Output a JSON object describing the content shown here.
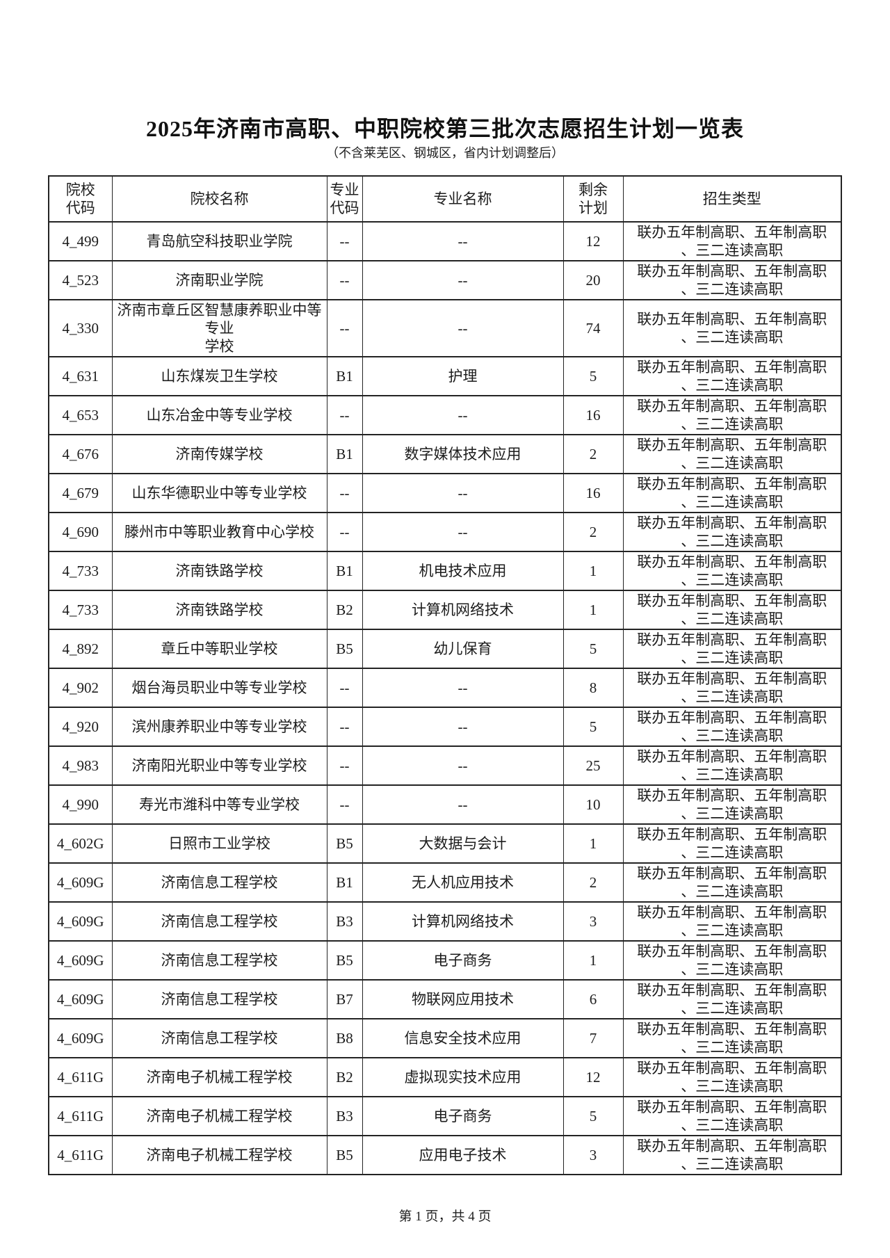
{
  "page": {
    "title": "2025年济南市高职、中职院校第三批次志愿招生计划一览表",
    "subtitle": "（不含莱芜区、钢城区，省内计划调整后）",
    "footer": "第 1 页，共 4 页"
  },
  "table": {
    "headers": [
      {
        "id": "school_code",
        "lines": [
          "院校",
          "代码"
        ]
      },
      {
        "id": "school_name",
        "lines": [
          "院校名称"
        ]
      },
      {
        "id": "major_code",
        "lines": [
          "专业",
          "代码"
        ]
      },
      {
        "id": "major_name",
        "lines": [
          "专业名称"
        ]
      },
      {
        "id": "remaining",
        "lines": [
          "剩余",
          "计划"
        ]
      },
      {
        "id": "type",
        "lines": [
          "招生类型"
        ]
      }
    ],
    "rows": [
      {
        "school_code": "4_499",
        "school_name": "青岛航空科技职业学院",
        "major_code": "--",
        "major_name": "--",
        "remaining": "12",
        "type_lines": [
          "联办五年制高职、五年制高职",
          "、三二连读高职"
        ]
      },
      {
        "school_code": "4_523",
        "school_name": "济南职业学院",
        "major_code": "--",
        "major_name": "--",
        "remaining": "20",
        "type_lines": [
          "联办五年制高职、五年制高职",
          "、三二连读高职"
        ]
      },
      {
        "school_code": "4_330",
        "school_name": "济南市章丘区智慧康养职业中等专业学校",
        "school_name_lines": [
          "济南市章丘区智慧康养职业中等专业",
          "学校"
        ],
        "major_code": "--",
        "major_name": "--",
        "remaining": "74",
        "type_lines": [
          "联办五年制高职、五年制高职",
          "、三二连读高职"
        ]
      },
      {
        "school_code": "4_631",
        "school_name": "山东煤炭卫生学校",
        "major_code": "B1",
        "major_name": "护理",
        "remaining": "5",
        "type_lines": [
          "联办五年制高职、五年制高职",
          "、三二连读高职"
        ]
      },
      {
        "school_code": "4_653",
        "school_name": "山东冶金中等专业学校",
        "major_code": "--",
        "major_name": "--",
        "remaining": "16",
        "type_lines": [
          "联办五年制高职、五年制高职",
          "、三二连读高职"
        ]
      },
      {
        "school_code": "4_676",
        "school_name": "济南传媒学校",
        "major_code": "B1",
        "major_name": "数字媒体技术应用",
        "remaining": "2",
        "type_lines": [
          "联办五年制高职、五年制高职",
          "、三二连读高职"
        ]
      },
      {
        "school_code": "4_679",
        "school_name": "山东华德职业中等专业学校",
        "major_code": "--",
        "major_name": "--",
        "remaining": "16",
        "type_lines": [
          "联办五年制高职、五年制高职",
          "、三二连读高职"
        ]
      },
      {
        "school_code": "4_690",
        "school_name": "滕州市中等职业教育中心学校",
        "major_code": "--",
        "major_name": "--",
        "remaining": "2",
        "type_lines": [
          "联办五年制高职、五年制高职",
          "、三二连读高职"
        ]
      },
      {
        "school_code": "4_733",
        "school_name": "济南铁路学校",
        "major_code": "B1",
        "major_name": "机电技术应用",
        "remaining": "1",
        "type_lines": [
          "联办五年制高职、五年制高职",
          "、三二连读高职"
        ]
      },
      {
        "school_code": "4_733",
        "school_name": "济南铁路学校",
        "major_code": "B2",
        "major_name": "计算机网络技术",
        "remaining": "1",
        "type_lines": [
          "联办五年制高职、五年制高职",
          "、三二连读高职"
        ]
      },
      {
        "school_code": "4_892",
        "school_name": "章丘中等职业学校",
        "major_code": "B5",
        "major_name": "幼儿保育",
        "remaining": "5",
        "type_lines": [
          "联办五年制高职、五年制高职",
          "、三二连读高职"
        ]
      },
      {
        "school_code": "4_902",
        "school_name": "烟台海员职业中等专业学校",
        "major_code": "--",
        "major_name": "--",
        "remaining": "8",
        "type_lines": [
          "联办五年制高职、五年制高职",
          "、三二连读高职"
        ]
      },
      {
        "school_code": "4_920",
        "school_name": "滨州康养职业中等专业学校",
        "major_code": "--",
        "major_name": "--",
        "remaining": "5",
        "type_lines": [
          "联办五年制高职、五年制高职",
          "、三二连读高职"
        ]
      },
      {
        "school_code": "4_983",
        "school_name": "济南阳光职业中等专业学校",
        "major_code": "--",
        "major_name": "--",
        "remaining": "25",
        "type_lines": [
          "联办五年制高职、五年制高职",
          "、三二连读高职"
        ]
      },
      {
        "school_code": "4_990",
        "school_name": "寿光市潍科中等专业学校",
        "major_code": "--",
        "major_name": "--",
        "remaining": "10",
        "type_lines": [
          "联办五年制高职、五年制高职",
          "、三二连读高职"
        ]
      },
      {
        "school_code": "4_602G",
        "school_name": "日照市工业学校",
        "major_code": "B5",
        "major_name": "大数据与会计",
        "remaining": "1",
        "type_lines": [
          "联办五年制高职、五年制高职",
          "、三二连读高职"
        ]
      },
      {
        "school_code": "4_609G",
        "school_name": "济南信息工程学校",
        "major_code": "B1",
        "major_name": "无人机应用技术",
        "remaining": "2",
        "type_lines": [
          "联办五年制高职、五年制高职",
          "、三二连读高职"
        ]
      },
      {
        "school_code": "4_609G",
        "school_name": "济南信息工程学校",
        "major_code": "B3",
        "major_name": "计算机网络技术",
        "remaining": "3",
        "type_lines": [
          "联办五年制高职、五年制高职",
          "、三二连读高职"
        ]
      },
      {
        "school_code": "4_609G",
        "school_name": "济南信息工程学校",
        "major_code": "B5",
        "major_name": "电子商务",
        "remaining": "1",
        "type_lines": [
          "联办五年制高职、五年制高职",
          "、三二连读高职"
        ]
      },
      {
        "school_code": "4_609G",
        "school_name": "济南信息工程学校",
        "major_code": "B7",
        "major_name": "物联网应用技术",
        "remaining": "6",
        "type_lines": [
          "联办五年制高职、五年制高职",
          "、三二连读高职"
        ]
      },
      {
        "school_code": "4_609G",
        "school_name": "济南信息工程学校",
        "major_code": "B8",
        "major_name": "信息安全技术应用",
        "remaining": "7",
        "type_lines": [
          "联办五年制高职、五年制高职",
          "、三二连读高职"
        ]
      },
      {
        "school_code": "4_611G",
        "school_name": "济南电子机械工程学校",
        "major_code": "B2",
        "major_name": "虚拟现实技术应用",
        "remaining": "12",
        "type_lines": [
          "联办五年制高职、五年制高职",
          "、三二连读高职"
        ]
      },
      {
        "school_code": "4_611G",
        "school_name": "济南电子机械工程学校",
        "major_code": "B3",
        "major_name": "电子商务",
        "remaining": "5",
        "type_lines": [
          "联办五年制高职、五年制高职",
          "、三二连读高职"
        ]
      },
      {
        "school_code": "4_611G",
        "school_name": "济南电子机械工程学校",
        "major_code": "B5",
        "major_name": "应用电子技术",
        "remaining": "3",
        "type_lines": [
          "联办五年制高职、五年制高职",
          "、三二连读高职"
        ]
      }
    ]
  }
}
